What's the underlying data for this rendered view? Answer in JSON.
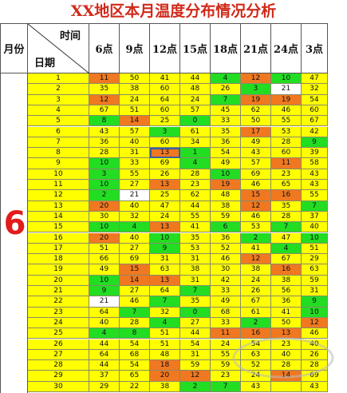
{
  "title": "XX地区本月温度分布情况分析",
  "header": {
    "month_label": "月份",
    "time_label": "时间",
    "day_label": "日期",
    "times": [
      "6点",
      "9点",
      "12点",
      "15点",
      "18点",
      "21点",
      "24点",
      "3点"
    ]
  },
  "month_value": "6",
  "colors": {
    "yellow": "#ffff00",
    "orange": "#f07820",
    "green": "#22dd22",
    "white": "#ffffff",
    "title": "#d02a1a",
    "month": "#e21b1b"
  },
  "rows": [
    {
      "day": "1",
      "values": [
        "11",
        "50",
        "41",
        "44",
        "4",
        "12",
        "10",
        "47"
      ],
      "colors": [
        "o",
        "y",
        "y",
        "y",
        "g",
        "o",
        "g",
        "y"
      ]
    },
    {
      "day": "2",
      "values": [
        "35",
        "38",
        "60",
        "48",
        "26",
        "3",
        "21",
        "32"
      ],
      "colors": [
        "y",
        "y",
        "y",
        "y",
        "y",
        "g",
        "w",
        "y"
      ]
    },
    {
      "day": "3",
      "values": [
        "12",
        "24",
        "64",
        "24",
        "7",
        "19",
        "19",
        "54"
      ],
      "colors": [
        "o",
        "y",
        "y",
        "y",
        "g",
        "o",
        "o",
        "y"
      ]
    },
    {
      "day": "4",
      "values": [
        "67",
        "51",
        "60",
        "57",
        "45",
        "62",
        "46",
        "60"
      ],
      "colors": [
        "y",
        "y",
        "y",
        "y",
        "y",
        "y",
        "y",
        "y"
      ]
    },
    {
      "day": "5",
      "values": [
        "8",
        "14",
        "25",
        "0",
        "33",
        "50",
        "55",
        "67"
      ],
      "colors": [
        "g",
        "o",
        "y",
        "g",
        "y",
        "y",
        "y",
        "y"
      ]
    },
    {
      "day": "6",
      "values": [
        "43",
        "57",
        "3",
        "61",
        "35",
        "17",
        "53",
        "42"
      ],
      "colors": [
        "y",
        "y",
        "g",
        "y",
        "y",
        "o",
        "y",
        "y"
      ]
    },
    {
      "day": "7",
      "values": [
        "36",
        "40",
        "60",
        "34",
        "36",
        "49",
        "28",
        "9"
      ],
      "colors": [
        "y",
        "y",
        "y",
        "y",
        "y",
        "y",
        "y",
        "g"
      ]
    },
    {
      "day": "8",
      "values": [
        "28",
        "31",
        "13",
        "1",
        "54",
        "43",
        "60",
        "39"
      ],
      "colors": [
        "y",
        "y",
        "o",
        "g",
        "y",
        "y",
        "y",
        "y"
      ]
    },
    {
      "day": "9",
      "values": [
        "10",
        "33",
        "69",
        "4",
        "49",
        "57",
        "11",
        "58"
      ],
      "colors": [
        "g",
        "y",
        "y",
        "g",
        "y",
        "y",
        "o",
        "y"
      ]
    },
    {
      "day": "10",
      "values": [
        "3",
        "55",
        "26",
        "28",
        "10",
        "69",
        "23",
        "43"
      ],
      "colors": [
        "g",
        "y",
        "y",
        "y",
        "g",
        "y",
        "y",
        "y"
      ]
    },
    {
      "day": "11",
      "values": [
        "10",
        "27",
        "13",
        "23",
        "19",
        "46",
        "65",
        "43"
      ],
      "colors": [
        "g",
        "y",
        "o",
        "y",
        "o",
        "y",
        "y",
        "y"
      ]
    },
    {
      "day": "12",
      "values": [
        "2",
        "21",
        "25",
        "62",
        "48",
        "15",
        "16",
        "55"
      ],
      "colors": [
        "g",
        "w",
        "y",
        "y",
        "y",
        "o",
        "o",
        "y"
      ]
    },
    {
      "day": "13",
      "values": [
        "20",
        "40",
        "47",
        "44",
        "38",
        "12",
        "35",
        "7"
      ],
      "colors": [
        "o",
        "y",
        "y",
        "y",
        "y",
        "o",
        "y",
        "g"
      ]
    },
    {
      "day": "14",
      "values": [
        "30",
        "32",
        "24",
        "55",
        "59",
        "46",
        "28",
        "37"
      ],
      "colors": [
        "y",
        "y",
        "y",
        "y",
        "y",
        "y",
        "y",
        "y"
      ]
    },
    {
      "day": "15",
      "values": [
        "10",
        "4",
        "13",
        "41",
        "6",
        "53",
        "7",
        "40"
      ],
      "colors": [
        "g",
        "g",
        "o",
        "y",
        "g",
        "y",
        "g",
        "y"
      ]
    },
    {
      "day": "16",
      "values": [
        "20",
        "40",
        "10",
        "35",
        "36",
        "2",
        "47",
        "10"
      ],
      "colors": [
        "o",
        "y",
        "g",
        "y",
        "y",
        "g",
        "y",
        "g"
      ]
    },
    {
      "day": "17",
      "values": [
        "51",
        "27",
        "9",
        "53",
        "52",
        "41",
        "4",
        "51"
      ],
      "colors": [
        "y",
        "y",
        "g",
        "y",
        "y",
        "y",
        "g",
        "y"
      ]
    },
    {
      "day": "18",
      "values": [
        "66",
        "69",
        "31",
        "31",
        "46",
        "12",
        "67",
        "29"
      ],
      "colors": [
        "y",
        "y",
        "y",
        "y",
        "y",
        "o",
        "y",
        "y"
      ]
    },
    {
      "day": "19",
      "values": [
        "49",
        "15",
        "63",
        "38",
        "30",
        "38",
        "16",
        "63"
      ],
      "colors": [
        "y",
        "o",
        "y",
        "y",
        "y",
        "y",
        "o",
        "y"
      ]
    },
    {
      "day": "20",
      "values": [
        "10",
        "14",
        "13",
        "31",
        "42",
        "24",
        "38",
        "59"
      ],
      "colors": [
        "g",
        "o",
        "o",
        "y",
        "y",
        "y",
        "y",
        "y"
      ]
    },
    {
      "day": "21",
      "values": [
        "9",
        "27",
        "64",
        "7",
        "33",
        "26",
        "56",
        "31"
      ],
      "colors": [
        "g",
        "y",
        "y",
        "g",
        "y",
        "y",
        "y",
        "y"
      ]
    },
    {
      "day": "22",
      "values": [
        "21",
        "46",
        "7",
        "35",
        "49",
        "67",
        "36",
        "9"
      ],
      "colors": [
        "w",
        "y",
        "g",
        "y",
        "y",
        "y",
        "y",
        "g"
      ]
    },
    {
      "day": "23",
      "values": [
        "64",
        "7",
        "32",
        "0",
        "68",
        "61",
        "41",
        "10"
      ],
      "colors": [
        "y",
        "g",
        "y",
        "g",
        "y",
        "y",
        "y",
        "g"
      ]
    },
    {
      "day": "24",
      "values": [
        "40",
        "28",
        "4",
        "27",
        "33",
        "2",
        "50",
        "12"
      ],
      "colors": [
        "y",
        "y",
        "g",
        "y",
        "y",
        "g",
        "y",
        "o"
      ]
    },
    {
      "day": "25",
      "values": [
        "4",
        "8",
        "51",
        "44",
        "11",
        "16",
        "13",
        "46"
      ],
      "colors": [
        "g",
        "g",
        "y",
        "y",
        "o",
        "o",
        "o",
        "y"
      ]
    },
    {
      "day": "26",
      "values": [
        "44",
        "54",
        "51",
        "54",
        "24",
        "54",
        "23",
        "40"
      ],
      "colors": [
        "y",
        "y",
        "y",
        "y",
        "y",
        "y",
        "y",
        "y"
      ]
    },
    {
      "day": "27",
      "values": [
        "64",
        "68",
        "48",
        "31",
        "55",
        "63",
        "40",
        "26"
      ],
      "colors": [
        "y",
        "y",
        "y",
        "y",
        "y",
        "y",
        "y",
        "y"
      ]
    },
    {
      "day": "28",
      "values": [
        "44",
        "54",
        "18",
        "59",
        "59",
        "52",
        "28",
        "28"
      ],
      "colors": [
        "y",
        "y",
        "o",
        "y",
        "y",
        "y",
        "y",
        "y"
      ]
    },
    {
      "day": "29",
      "values": [
        "37",
        "65",
        "20",
        "12",
        "23",
        "24",
        "14",
        "69"
      ],
      "colors": [
        "y",
        "y",
        "o",
        "o",
        "y",
        "y",
        "o",
        "y"
      ]
    },
    {
      "day": "30",
      "values": [
        "29",
        "22",
        "38",
        "2",
        "7",
        "43",
        "",
        "43"
      ],
      "colors": [
        "y",
        "y",
        "y",
        "g",
        "g",
        "y",
        "y",
        "y"
      ]
    }
  ]
}
